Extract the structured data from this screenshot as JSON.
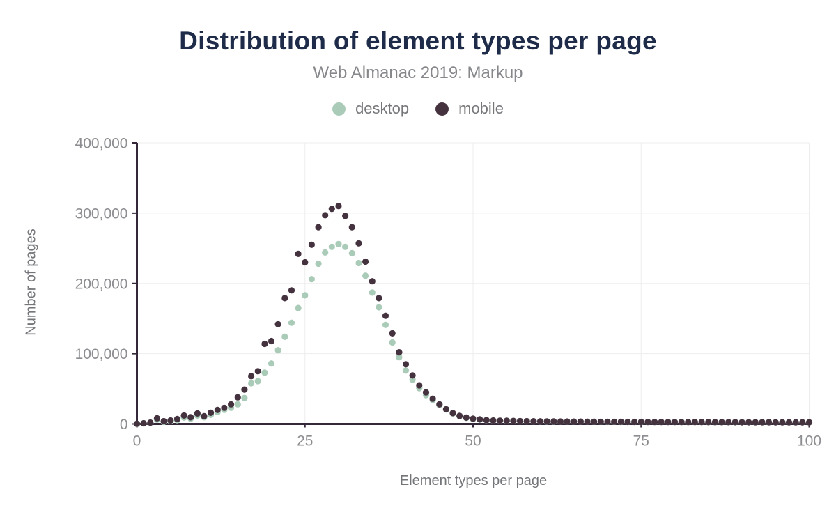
{
  "header": {
    "title": "Distribution of element types per page",
    "subtitle": "Web Almanac 2019: Markup"
  },
  "legend": {
    "items": [
      {
        "label": "desktop",
        "color": "#a9cbb8"
      },
      {
        "label": "mobile",
        "color": "#45323f"
      }
    ]
  },
  "colors": {
    "title": "#1e2b49",
    "subtitle": "#85878b",
    "axis": "#35283b",
    "grid": "#ededed",
    "tick_text": "#8b8d90",
    "desktop_dot": "#a9cbb8",
    "mobile_dot": "#45323f",
    "background": "#ffffff"
  },
  "chart_data": {
    "type": "scatter",
    "title": "Distribution of element types per page",
    "subtitle": "Web Almanac 2019: Markup",
    "xlabel": "Element types per page",
    "ylabel": "Number of pages",
    "xlim": [
      0,
      100
    ],
    "ylim": [
      0,
      400000
    ],
    "grid": true,
    "legend_position": "top",
    "x_ticks": [
      0,
      25,
      50,
      75,
      100
    ],
    "x_tick_labels": [
      "0",
      "25",
      "50",
      "75",
      "100"
    ],
    "y_ticks": [
      0,
      100000,
      200000,
      300000,
      400000
    ],
    "y_tick_labels": [
      "0",
      "100,000",
      "200,000",
      "300,000",
      "400,000"
    ],
    "x": [
      0,
      1,
      2,
      3,
      4,
      5,
      6,
      7,
      8,
      9,
      10,
      11,
      12,
      13,
      14,
      15,
      16,
      17,
      18,
      19,
      20,
      21,
      22,
      23,
      24,
      25,
      26,
      27,
      28,
      29,
      30,
      31,
      32,
      33,
      34,
      35,
      36,
      37,
      38,
      39,
      40,
      41,
      42,
      43,
      44,
      45,
      46,
      47,
      48,
      49,
      50,
      51,
      52,
      53,
      54,
      55,
      56,
      57,
      58,
      59,
      60,
      61,
      62,
      63,
      64,
      65,
      66,
      67,
      68,
      69,
      70,
      71,
      72,
      73,
      74,
      75,
      76,
      77,
      78,
      79,
      80,
      81,
      82,
      83,
      84,
      85,
      86,
      87,
      88,
      89,
      90,
      91,
      92,
      93,
      94,
      95,
      96,
      97,
      98,
      99,
      100
    ],
    "series": [
      {
        "name": "desktop",
        "color": "#a9cbb8",
        "values": [
          200,
          800,
          1500,
          6000,
          3000,
          4000,
          5500,
          9000,
          7500,
          12000,
          9500,
          13000,
          17000,
          20000,
          23000,
          28000,
          37000,
          58000,
          61000,
          73000,
          86000,
          105000,
          124000,
          144000,
          165000,
          183000,
          206000,
          228000,
          244000,
          252000,
          256000,
          252000,
          243000,
          229000,
          211000,
          187000,
          166000,
          141000,
          116000,
          95000,
          76000,
          63000,
          51000,
          41000,
          34000,
          27000,
          20500,
          15000,
          11000,
          8500,
          7000,
          6000,
          5200,
          4800,
          4500,
          4300,
          4100,
          3900,
          3800,
          3700,
          3600,
          3500,
          3400,
          3400,
          3300,
          3300,
          3200,
          3200,
          3100,
          3100,
          3000,
          3000,
          2900,
          2900,
          2900,
          2800,
          2800,
          2800,
          2700,
          2700,
          2700,
          2600,
          2600,
          2600,
          2600,
          2500,
          2500,
          2500,
          2500,
          2400,
          2400,
          2400,
          2400,
          2400,
          2300,
          2300,
          2300,
          2300,
          2300,
          2300,
          2300
        ]
      },
      {
        "name": "mobile",
        "color": "#45323f",
        "values": [
          300,
          1000,
          2000,
          8000,
          4000,
          5000,
          7000,
          12000,
          9500,
          15000,
          11000,
          16000,
          20000,
          23000,
          28000,
          38000,
          49000,
          68000,
          75000,
          114000,
          118000,
          142000,
          179000,
          190000,
          242000,
          230000,
          255000,
          280000,
          297000,
          306000,
          310000,
          296000,
          280000,
          257000,
          231000,
          203000,
          179000,
          154000,
          129000,
          102000,
          85000,
          69000,
          55000,
          45000,
          36000,
          28000,
          21000,
          15500,
          11500,
          9000,
          7500,
          6500,
          5500,
          5000,
          4800,
          4600,
          4400,
          4200,
          4000,
          3900,
          3800,
          3700,
          3600,
          3500,
          3500,
          3400,
          3400,
          3300,
          3300,
          3200,
          3200,
          3100,
          3100,
          3000,
          3000,
          3000,
          2900,
          2900,
          2900,
          2800,
          2800,
          2800,
          2700,
          2700,
          2700,
          2700,
          2600,
          2600,
          2600,
          2600,
          2500,
          2500,
          2500,
          2500,
          2500,
          2400,
          2400,
          2400,
          2400,
          2400,
          2400
        ]
      }
    ]
  }
}
